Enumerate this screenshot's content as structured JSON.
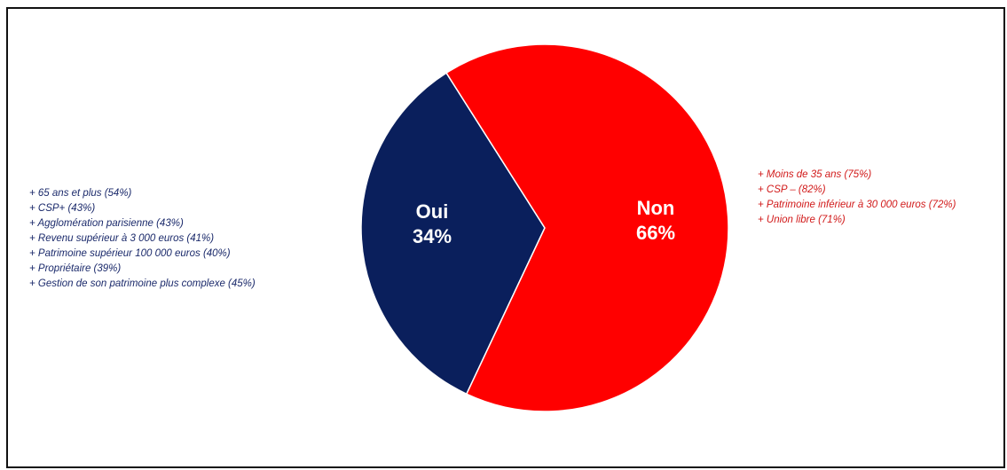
{
  "chart_data": {
    "type": "pie",
    "slices": [
      {
        "label": "Oui",
        "percent_label": "34%",
        "value": 34,
        "color": "#0a1f5c"
      },
      {
        "label": "Non",
        "percent_label": "66%",
        "value": 66,
        "color": "#ff0000"
      }
    ],
    "annotations": {
      "oui": [
        " + 65 ans et plus (54%)",
        "+ CSP+ (43%)",
        "+ Agglomération parisienne (43%)",
        "+  Revenu supérieur à 3 000 euros (41%)",
        "+ Patrimoine supérieur 100 000 euros (40%)",
        "+ Propriétaire (39%)",
        "+ Gestion de son patrimoine plus complexe (45%)"
      ],
      "non": [
        " + Moins de 35 ans (75%)",
        "+ CSP – (82%)",
        "+ Patrimoine inférieur à 30 000 euros (72%)",
        "+ Union libre (71%)"
      ]
    },
    "colors": {
      "oui_text": "#1b2a6b",
      "non_text": "#d11a1a"
    }
  }
}
